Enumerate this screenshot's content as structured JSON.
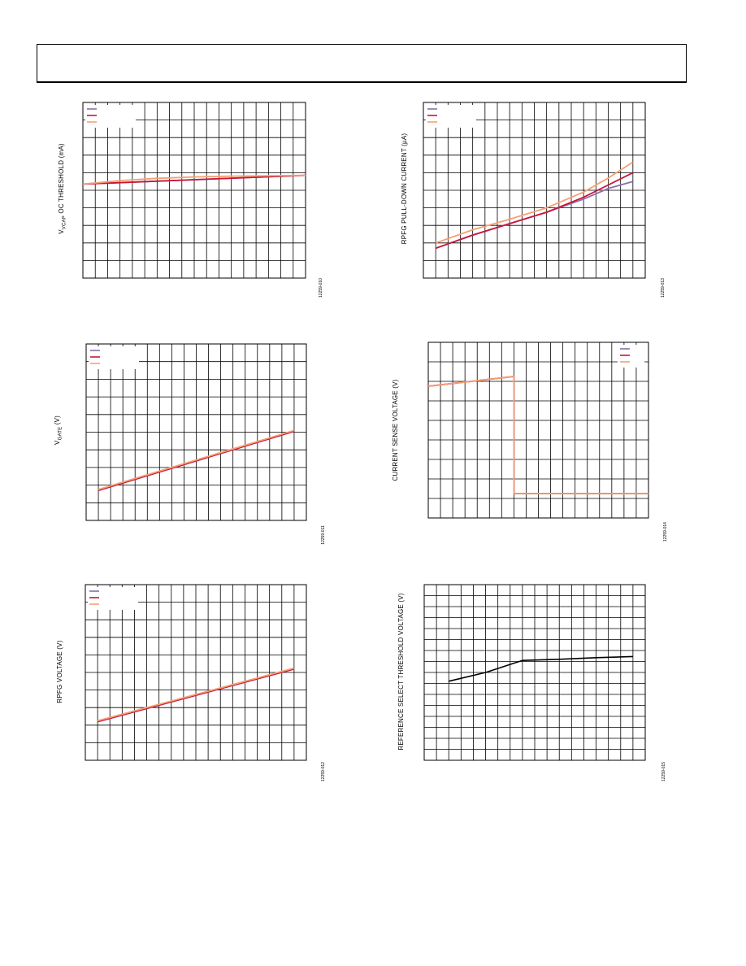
{
  "header": {},
  "colors": {
    "purple": "#8b6fa8",
    "crimson": "#c8163c",
    "orange": "#f5a072",
    "black": "#000000"
  },
  "charts": [
    {
      "id": "c1",
      "ylabel_main": "V",
      "ylabel_sub": "VCAP",
      "ylabel_rest": " OC THRESHOLD (mA)",
      "figure_id": "12259-010"
    },
    {
      "id": "c2",
      "ylabel": "RPFG PULL-DOWN CURRENT (µA)",
      "figure_id": "12259-013"
    },
    {
      "id": "c3",
      "ylabel_main": "V",
      "ylabel_sub": "GATE",
      "ylabel_rest": " (V)",
      "figure_id": "12259-011"
    },
    {
      "id": "c4",
      "ylabel": "CURRENT SENSE VOLTAGE (V)",
      "figure_id": "12259-014"
    },
    {
      "id": "c5",
      "ylabel": "RPFG VOLTAGE (V)",
      "figure_id": "12259-012"
    },
    {
      "id": "c6",
      "ylabel": "REFERENCE SELECT THRESHOLD VOLTAGE (V)",
      "figure_id": "12259-015"
    }
  ],
  "chart_data": [
    {
      "type": "line",
      "id": "c1",
      "xlim": [
        0,
        18
      ],
      "ylim": [
        0,
        10
      ],
      "grid": true,
      "legend": "top-left",
      "series": [
        {
          "color": "#8b6fa8",
          "x": [
            0,
            18
          ],
          "y": [
            5.35,
            5.85
          ]
        },
        {
          "color": "#c8163c",
          "x": [
            0,
            18
          ],
          "y": [
            5.35,
            5.85
          ]
        },
        {
          "color": "#f5a072",
          "x": [
            0,
            3,
            6,
            9,
            12,
            15,
            18
          ],
          "y": [
            5.35,
            5.55,
            5.68,
            5.76,
            5.8,
            5.83,
            5.85
          ]
        }
      ]
    },
    {
      "type": "line",
      "id": "c2",
      "xlim": [
        0,
        18
      ],
      "ylim": [
        0,
        10
      ],
      "grid": true,
      "legend": "top-left",
      "series": [
        {
          "color": "#8b6fa8",
          "x": [
            1,
            4,
            7,
            10,
            13,
            15,
            17
          ],
          "y": [
            1.7,
            2.45,
            3.1,
            3.75,
            4.5,
            5.1,
            5.5
          ]
        },
        {
          "color": "#c8163c",
          "x": [
            1,
            4,
            7,
            10,
            13,
            15,
            17
          ],
          "y": [
            1.7,
            2.45,
            3.1,
            3.75,
            4.6,
            5.3,
            6.0
          ]
        },
        {
          "color": "#f5a072",
          "x": [
            1,
            4,
            7,
            10,
            13,
            15,
            17
          ],
          "y": [
            2.0,
            2.75,
            3.35,
            4.0,
            4.9,
            5.7,
            6.6
          ]
        }
      ]
    },
    {
      "type": "line",
      "id": "c3",
      "xlim": [
        0,
        18
      ],
      "ylim": [
        0,
        10
      ],
      "grid": true,
      "legend": "top-left",
      "series": [
        {
          "color": "#8b6fa8",
          "x": [
            1,
            17
          ],
          "y": [
            1.7,
            5.05
          ]
        },
        {
          "color": "#c8163c",
          "x": [
            1,
            17
          ],
          "y": [
            1.7,
            5.05
          ]
        },
        {
          "color": "#f5a072",
          "x": [
            1,
            17
          ],
          "y": [
            1.75,
            5.1
          ]
        }
      ]
    },
    {
      "type": "line",
      "id": "c4",
      "xlim": [
        0,
        18
      ],
      "ylim": [
        0,
        9
      ],
      "grid": true,
      "legend": "top-right",
      "series": [
        {
          "color": "#8b6fa8",
          "x": [
            0,
            7,
            7,
            18
          ],
          "y": [
            6.75,
            7.25,
            1.25,
            1.25
          ]
        },
        {
          "color": "#c8163c",
          "x": [
            0,
            7,
            7,
            18
          ],
          "y": [
            6.75,
            7.25,
            1.25,
            1.25
          ]
        },
        {
          "color": "#f5a072",
          "x": [
            0,
            7,
            7,
            18
          ],
          "y": [
            6.75,
            7.25,
            1.25,
            1.25
          ]
        }
      ]
    },
    {
      "type": "line",
      "id": "c5",
      "xlim": [
        0,
        18
      ],
      "ylim": [
        0,
        10
      ],
      "grid": true,
      "legend": "top-left",
      "series": [
        {
          "color": "#8b6fa8",
          "x": [
            1,
            17
          ],
          "y": [
            2.2,
            5.2
          ]
        },
        {
          "color": "#c8163c",
          "x": [
            1,
            17
          ],
          "y": [
            2.2,
            5.2
          ]
        },
        {
          "color": "#f5a072",
          "x": [
            1,
            17
          ],
          "y": [
            2.25,
            5.25
          ]
        }
      ]
    },
    {
      "type": "line",
      "id": "c6",
      "xlim": [
        0,
        18
      ],
      "ylim": [
        0,
        16
      ],
      "grid": true,
      "legend": "none",
      "series": [
        {
          "color": "#000000",
          "x": [
            2,
            5,
            8,
            11,
            14,
            17
          ],
          "y": [
            7.2,
            8.0,
            9.1,
            9.2,
            9.35,
            9.45
          ]
        }
      ]
    }
  ]
}
